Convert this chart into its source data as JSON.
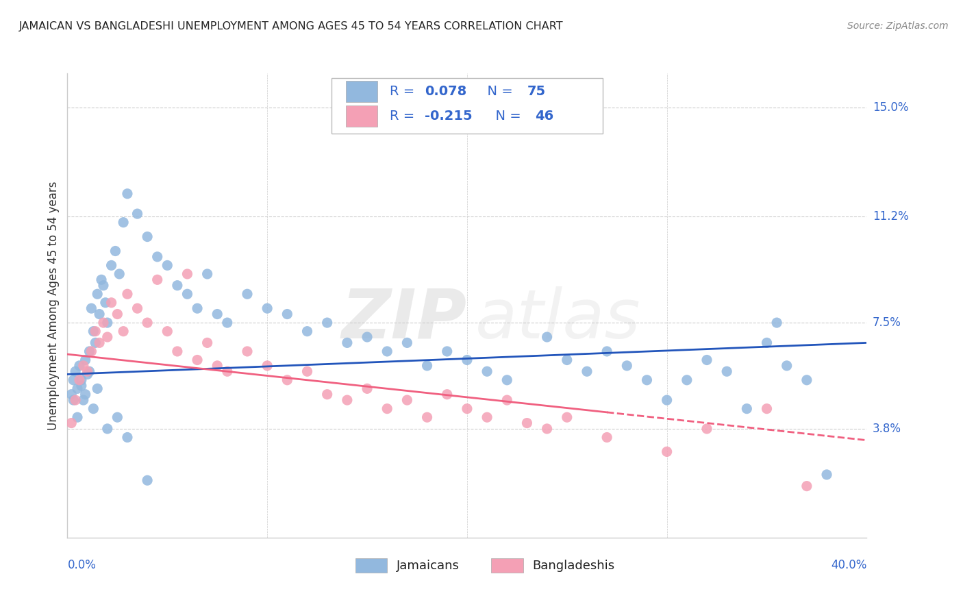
{
  "title": "JAMAICAN VS BANGLADESHI UNEMPLOYMENT AMONG AGES 45 TO 54 YEARS CORRELATION CHART",
  "source": "Source: ZipAtlas.com",
  "ylabel": "Unemployment Among Ages 45 to 54 years",
  "xlim": [
    0.0,
    0.4
  ],
  "ylim": [
    0.0,
    0.162
  ],
  "ytick_labels_right": [
    "15.0%",
    "11.2%",
    "7.5%",
    "3.8%"
  ],
  "ytick_values_right": [
    0.15,
    0.112,
    0.075,
    0.038
  ],
  "jamaicans_color": "#92b8de",
  "bangladeshis_color": "#f4a0b5",
  "trend_jamaicans_color": "#2255bb",
  "trend_bangladeshis_color": "#f06080",
  "background_color": "#ffffff",
  "grid_color": "#cccccc",
  "legend_text_color": "#3366cc",
  "legend_neg_color": "#3366cc",
  "axis_label_color": "#3366cc",
  "jamaicans_x": [
    0.002,
    0.003,
    0.004,
    0.005,
    0.006,
    0.007,
    0.008,
    0.009,
    0.01,
    0.011,
    0.012,
    0.013,
    0.014,
    0.015,
    0.016,
    0.017,
    0.018,
    0.019,
    0.02,
    0.022,
    0.024,
    0.026,
    0.028,
    0.03,
    0.035,
    0.04,
    0.045,
    0.05,
    0.055,
    0.06,
    0.065,
    0.07,
    0.075,
    0.08,
    0.09,
    0.1,
    0.11,
    0.12,
    0.13,
    0.14,
    0.15,
    0.16,
    0.17,
    0.18,
    0.19,
    0.2,
    0.21,
    0.22,
    0.24,
    0.25,
    0.26,
    0.27,
    0.28,
    0.29,
    0.3,
    0.31,
    0.32,
    0.33,
    0.34,
    0.35,
    0.355,
    0.36,
    0.37,
    0.38,
    0.003,
    0.005,
    0.007,
    0.009,
    0.011,
    0.013,
    0.015,
    0.02,
    0.025,
    0.03,
    0.04
  ],
  "jamaicans_y": [
    0.05,
    0.055,
    0.058,
    0.052,
    0.06,
    0.053,
    0.048,
    0.062,
    0.057,
    0.065,
    0.08,
    0.072,
    0.068,
    0.085,
    0.078,
    0.09,
    0.088,
    0.082,
    0.075,
    0.095,
    0.1,
    0.092,
    0.11,
    0.12,
    0.113,
    0.105,
    0.098,
    0.095,
    0.088,
    0.085,
    0.08,
    0.092,
    0.078,
    0.075,
    0.085,
    0.08,
    0.078,
    0.072,
    0.075,
    0.068,
    0.07,
    0.065,
    0.068,
    0.06,
    0.065,
    0.062,
    0.058,
    0.055,
    0.07,
    0.062,
    0.058,
    0.065,
    0.06,
    0.055,
    0.048,
    0.055,
    0.062,
    0.058,
    0.045,
    0.068,
    0.075,
    0.06,
    0.055,
    0.022,
    0.048,
    0.042,
    0.055,
    0.05,
    0.058,
    0.045,
    0.052,
    0.038,
    0.042,
    0.035,
    0.02
  ],
  "bangladeshis_x": [
    0.002,
    0.004,
    0.006,
    0.008,
    0.01,
    0.012,
    0.014,
    0.016,
    0.018,
    0.02,
    0.022,
    0.025,
    0.028,
    0.03,
    0.035,
    0.04,
    0.045,
    0.05,
    0.055,
    0.06,
    0.065,
    0.07,
    0.075,
    0.08,
    0.09,
    0.1,
    0.11,
    0.12,
    0.13,
    0.14,
    0.15,
    0.16,
    0.17,
    0.18,
    0.19,
    0.2,
    0.21,
    0.22,
    0.23,
    0.24,
    0.25,
    0.27,
    0.3,
    0.32,
    0.35,
    0.37
  ],
  "bangladeshis_y": [
    0.04,
    0.048,
    0.055,
    0.06,
    0.058,
    0.065,
    0.072,
    0.068,
    0.075,
    0.07,
    0.082,
    0.078,
    0.072,
    0.085,
    0.08,
    0.075,
    0.09,
    0.072,
    0.065,
    0.092,
    0.062,
    0.068,
    0.06,
    0.058,
    0.065,
    0.06,
    0.055,
    0.058,
    0.05,
    0.048,
    0.052,
    0.045,
    0.048,
    0.042,
    0.05,
    0.045,
    0.042,
    0.048,
    0.04,
    0.038,
    0.042,
    0.035,
    0.03,
    0.038,
    0.045,
    0.018
  ],
  "trend_j_x0": 0.0,
  "trend_j_y0": 0.057,
  "trend_j_x1": 0.4,
  "trend_j_y1": 0.068,
  "trend_b_x0": 0.0,
  "trend_b_y0": 0.064,
  "trend_b_x1": 0.4,
  "trend_b_y1": 0.034,
  "trend_b_solid_end": 0.27
}
